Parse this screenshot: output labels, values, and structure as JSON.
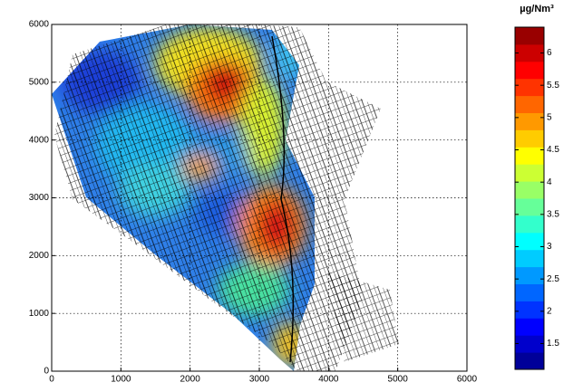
{
  "map": {
    "unit": "µg/Nm³",
    "xlim": [
      0,
      6000
    ],
    "ylim": [
      0,
      6000
    ],
    "xticks": [
      0,
      1000,
      2000,
      3000,
      4000,
      5000,
      6000
    ],
    "yticks": [
      0,
      1000,
      2000,
      3000,
      4000,
      5000,
      6000
    ],
    "grid": true,
    "colorbar": {
      "clim": [
        1.1,
        6.4
      ],
      "ticks": [
        1.5,
        2,
        2.5,
        3,
        3.5,
        4,
        4.5,
        5,
        5.5,
        6
      ]
    }
  }
}
